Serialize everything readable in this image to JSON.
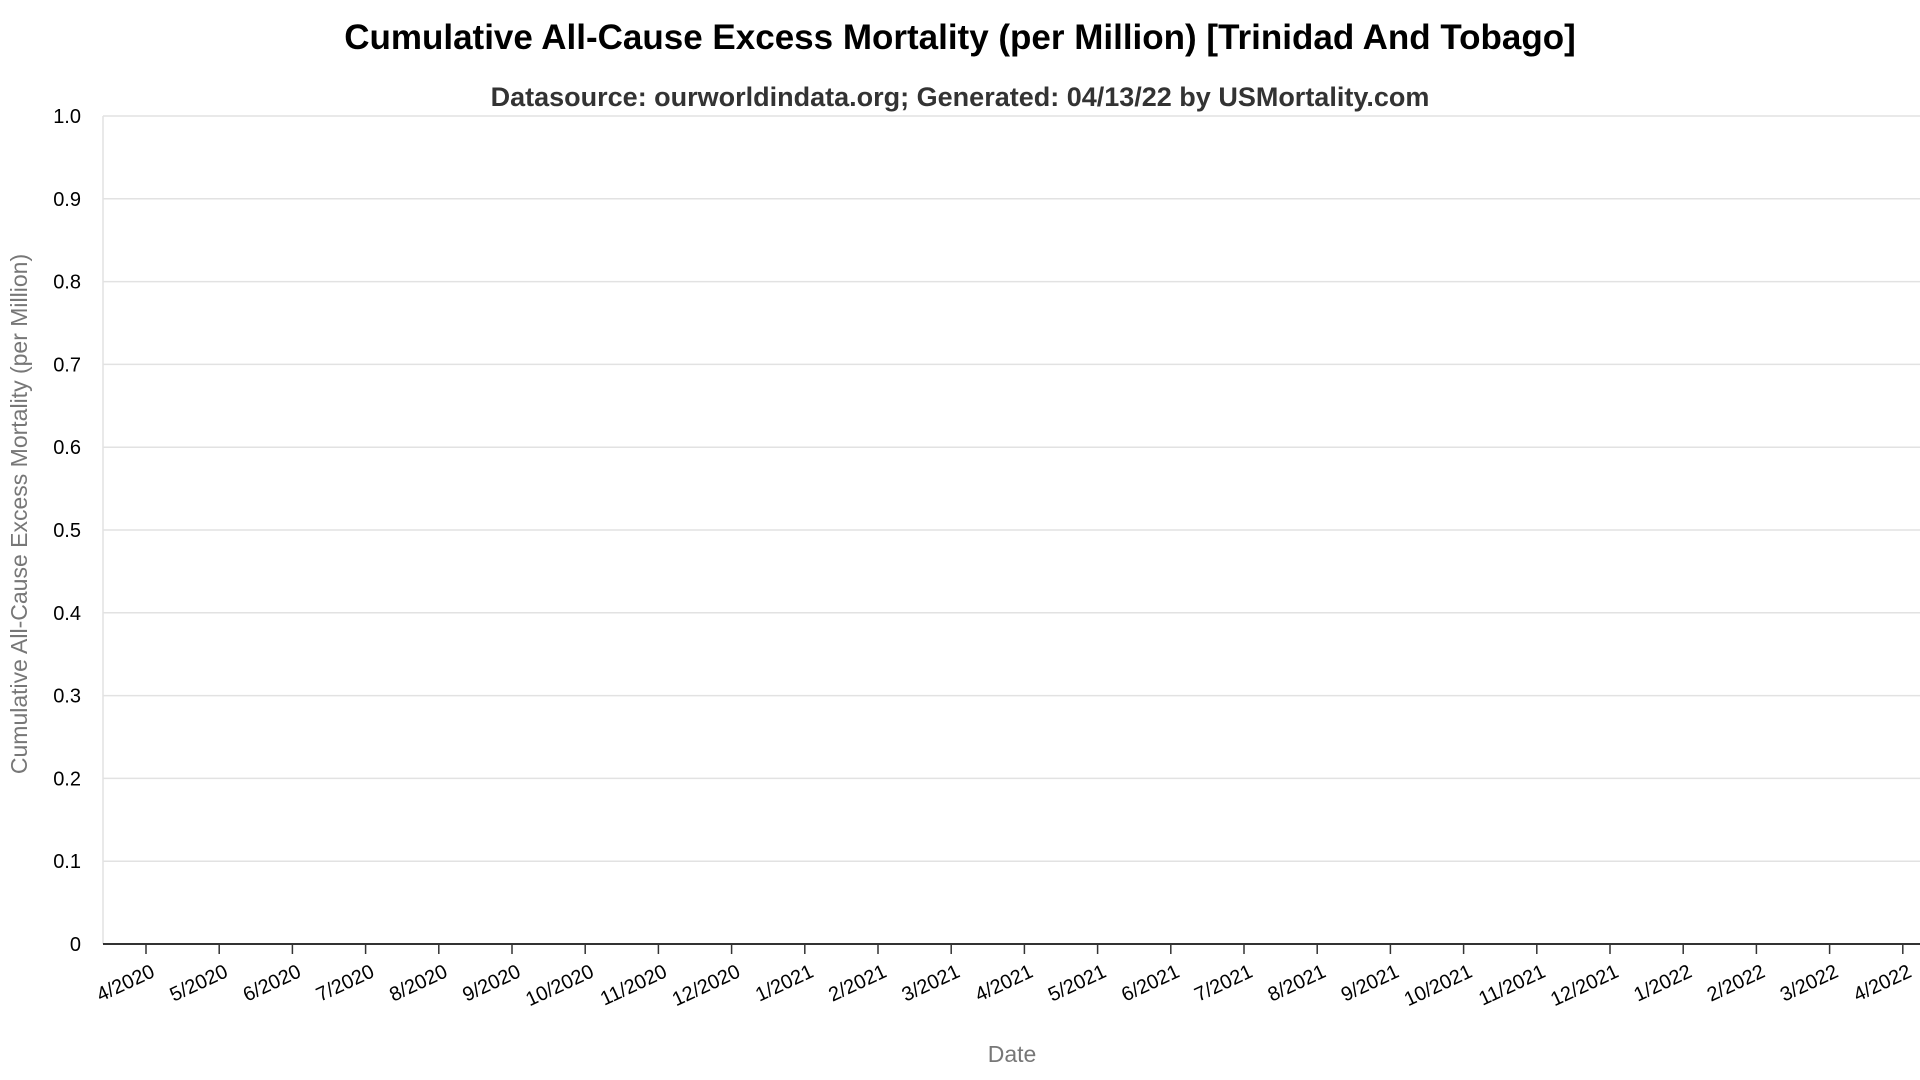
{
  "chart_data": {
    "type": "line",
    "title": "Cumulative All-Cause Excess Mortality (per Million) [Trinidad And Tobago]",
    "subtitle": "Datasource: ourworldindata.org; Generated: 04/13/22 by USMortality.com",
    "xlabel": "Date",
    "ylabel": "Cumulative All-Cause Excess Mortality (per Million)",
    "ylim": [
      0,
      1
    ],
    "y_ticks": [
      {
        "value": 0,
        "label": "0"
      },
      {
        "value": 0.1,
        "label": "0.1"
      },
      {
        "value": 0.2,
        "label": "0.2"
      },
      {
        "value": 0.3,
        "label": "0.3"
      },
      {
        "value": 0.4,
        "label": "0.4"
      },
      {
        "value": 0.5,
        "label": "0.5"
      },
      {
        "value": 0.6,
        "label": "0.6"
      },
      {
        "value": 0.7,
        "label": "0.7"
      },
      {
        "value": 0.8,
        "label": "0.8"
      },
      {
        "value": 0.9,
        "label": "0.9"
      },
      {
        "value": 1.0,
        "label": "1.0"
      }
    ],
    "x_ticks": [
      "4/2020",
      "5/2020",
      "6/2020",
      "7/2020",
      "8/2020",
      "9/2020",
      "10/2020",
      "11/2020",
      "12/2020",
      "1/2021",
      "2/2021",
      "3/2021",
      "4/2021",
      "5/2021",
      "6/2021",
      "7/2021",
      "8/2021",
      "9/2021",
      "10/2021",
      "11/2021",
      "12/2021",
      "1/2022",
      "2/2022",
      "3/2022",
      "4/2022"
    ],
    "series": [],
    "grid": true,
    "legend": "none",
    "colors": {
      "grid": "#e2e2e2",
      "axis": "#333333",
      "title": "#000000",
      "subtitle": "#333333",
      "axis_title": "#777777",
      "tick_label": "#000000"
    }
  }
}
